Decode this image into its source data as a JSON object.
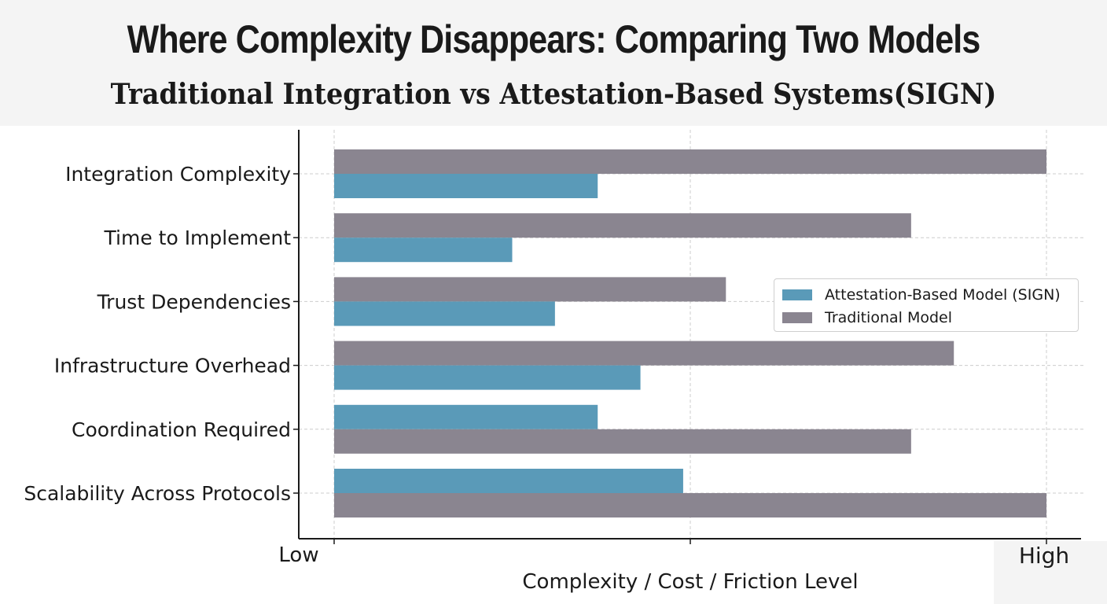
{
  "header": {
    "title": "Where Complexity Disappears: Comparing Two Models",
    "subtitle": "Traditional Integration vs Attestation-Based Systems(SIGN)"
  },
  "chart_data": {
    "type": "bar",
    "orientation": "horizontal",
    "categories": [
      "Integration Complexity",
      "Time to Implement",
      "Trust Dependencies",
      "Infrastructure Overhead",
      "Coordination Required",
      "Scalability Across Protocols"
    ],
    "series": [
      {
        "name": "Traditional Model",
        "color": "#8a8590",
        "values": [
          10,
          8.1,
          5.5,
          8.7,
          8.1,
          10
        ]
      },
      {
        "name": "Attestation-Based Model (SIGN)",
        "color": "#5a9ab8",
        "values": [
          3.7,
          2.5,
          3.1,
          4.3,
          3.7,
          4.9
        ]
      }
    ],
    "bar_order_top_first": [
      [
        "Traditional Model",
        "Attestation-Based Model (SIGN)"
      ],
      [
        "Traditional Model",
        "Attestation-Based Model (SIGN)"
      ],
      [
        "Traditional Model",
        "Attestation-Based Model (SIGN)"
      ],
      [
        "Traditional Model",
        "Attestation-Based Model (SIGN)"
      ],
      [
        "Attestation-Based Model (SIGN)",
        "Traditional Model"
      ],
      [
        "Attestation-Based Model (SIGN)",
        "Traditional Model"
      ]
    ],
    "xlim": [
      0,
      10
    ],
    "x_tick_labels": [
      "Low",
      "High"
    ],
    "xlabel": "Complexity / Cost / Friction Level",
    "ylabel": "",
    "grid": true,
    "legend": {
      "placement": "center-right",
      "entries": [
        "Attestation-Based Model (SIGN)",
        "Traditional Model"
      ]
    }
  }
}
